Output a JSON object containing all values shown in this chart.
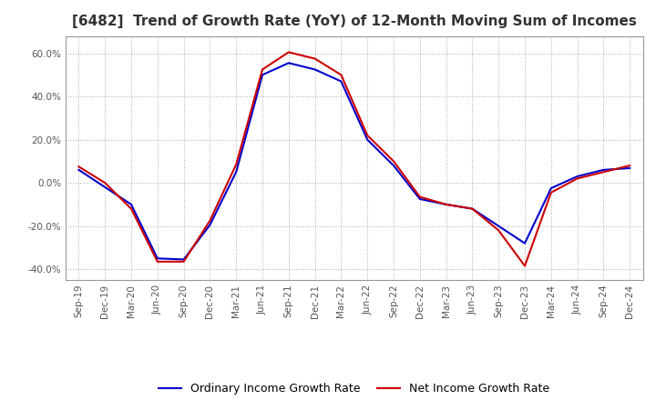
{
  "title": "[6482]  Trend of Growth Rate (YoY) of 12-Month Moving Sum of Incomes",
  "title_fontsize": 11,
  "ylim": [
    -0.45,
    0.68
  ],
  "yticks": [
    -0.4,
    -0.2,
    0.0,
    0.2,
    0.4,
    0.6
  ],
  "background_color": "#ffffff",
  "grid_color": "#aaaaaa",
  "ordinary_color": "#0000cc",
  "net_color": "#cc0000",
  "legend_labels": [
    "Ordinary Income Growth Rate",
    "Net Income Growth Rate"
  ],
  "x_labels": [
    "Sep-19",
    "Dec-19",
    "Mar-20",
    "Jun-20",
    "Sep-20",
    "Dec-20",
    "Mar-21",
    "Jun-21",
    "Sep-21",
    "Dec-21",
    "Mar-22",
    "Jun-22",
    "Sep-22",
    "Dec-22",
    "Mar-23",
    "Jun-23",
    "Sep-23",
    "Dec-23",
    "Mar-24",
    "Jun-24",
    "Sep-24",
    "Dec-24"
  ],
  "ordinary_income": [
    0.06,
    -0.02,
    -0.1,
    -0.35,
    -0.355,
    -0.195,
    0.05,
    0.5,
    0.555,
    0.525,
    0.47,
    0.2,
    0.08,
    -0.075,
    -0.1,
    -0.12,
    -0.2,
    -0.28,
    -0.025,
    0.03,
    0.06,
    0.068
  ],
  "net_income": [
    0.075,
    0.0,
    -0.12,
    -0.365,
    -0.365,
    -0.175,
    0.085,
    0.525,
    0.605,
    0.575,
    0.5,
    0.22,
    0.1,
    -0.065,
    -0.1,
    -0.12,
    -0.22,
    -0.385,
    -0.045,
    0.02,
    0.05,
    0.08
  ]
}
